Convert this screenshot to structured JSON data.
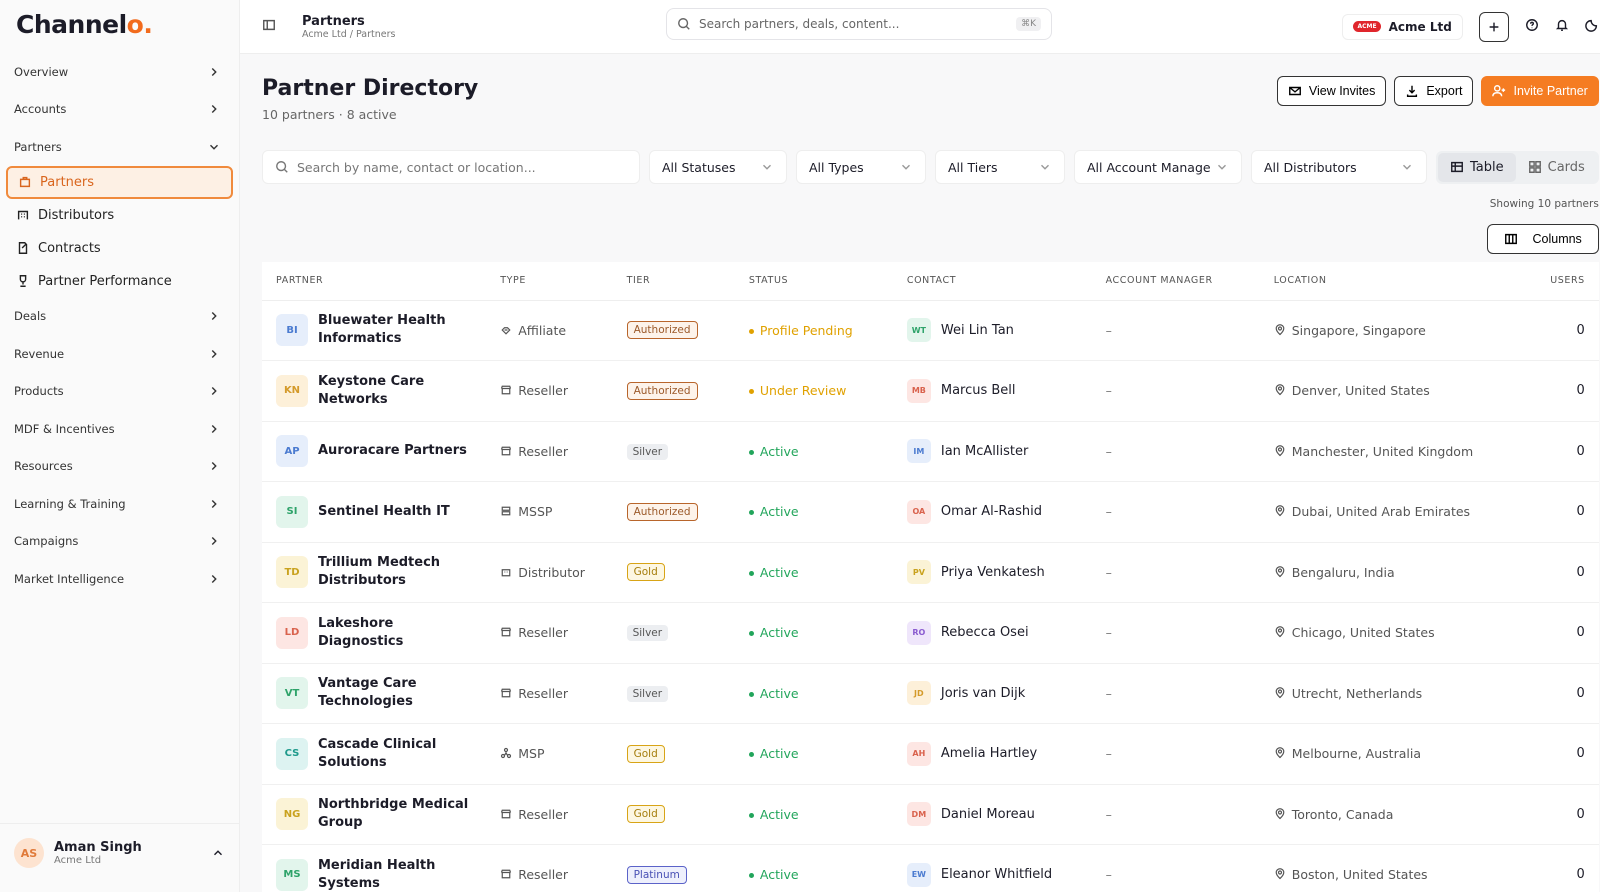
{
  "sidebar": {
    "brand": "Channel",
    "brand_accent": "o.",
    "nav_top": [
      "Overview",
      "Accounts"
    ],
    "group": "Partners",
    "sub_items": [
      "Partners",
      "Distributors",
      "Contracts",
      "Partner Performance"
    ],
    "nav_bottom": [
      "Deals",
      "Revenue",
      "Products",
      "MDF & Incentives",
      "Resources",
      "Learning & Training",
      "Campaigns",
      "Market Intelligence"
    ],
    "user": {
      "initials": "AS",
      "name": "Aman Singh",
      "org": "Acme Ltd"
    }
  },
  "topbar": {
    "title": "Partners",
    "breadcrumb": "Acme Ltd / Partners",
    "search_placeholder": "Search partners, deals, content...",
    "shortcut": "⌘K",
    "org_logo": "ACME",
    "org": "Acme Ltd"
  },
  "header": {
    "title": "Partner Directory",
    "subtitle": "10 partners · 8 active",
    "buttons": [
      "View Invites",
      "Export",
      "Invite Partner"
    ]
  },
  "filters": {
    "search_placeholder": "Search by name, contact or location...",
    "dropdowns": [
      "All Statuses",
      "All Types",
      "All Tiers",
      "All Account Manage",
      "All Distributors"
    ],
    "views": [
      "Table",
      "Cards"
    ]
  },
  "showing": "Showing 10 partners",
  "columns_button": "Columns",
  "table": {
    "columns": [
      "PARTNER",
      "TYPE",
      "TIER",
      "STATUS",
      "CONTACT",
      "ACCOUNT MANAGER",
      "LOCATION",
      "USERS"
    ],
    "rows": [
      {
        "initials": "BI",
        "name": "Bluewater Health Informatics",
        "type": "Affiliate",
        "tier": "Authorized",
        "status": "Profile Pending",
        "contact_initials": "WT",
        "contact": "Wei Lin Tan",
        "manager": "–",
        "location": "Singapore, Singapore",
        "users": 0
      },
      {
        "initials": "KN",
        "name": "Keystone Care Networks",
        "type": "Reseller",
        "tier": "Authorized",
        "status": "Under Review",
        "contact_initials": "MB",
        "contact": "Marcus Bell",
        "manager": "–",
        "location": "Denver, United States",
        "users": 0
      },
      {
        "initials": "AP",
        "name": "Auroracare Partners",
        "type": "Reseller",
        "tier": "Silver",
        "status": "Active",
        "contact_initials": "IM",
        "contact": "Ian McAllister",
        "manager": "–",
        "location": "Manchester, United Kingdom",
        "users": 0
      },
      {
        "initials": "SI",
        "name": "Sentinel Health IT",
        "type": "MSSP",
        "tier": "Authorized",
        "status": "Active",
        "contact_initials": "OA",
        "contact": "Omar Al-Rashid",
        "manager": "–",
        "location": "Dubai, United Arab Emirates",
        "users": 0
      },
      {
        "initials": "TD",
        "name": "Trillium Medtech Distributors",
        "type": "Distributor",
        "tier": "Gold",
        "status": "Active",
        "contact_initials": "PV",
        "contact": "Priya Venkatesh",
        "manager": "–",
        "location": "Bengaluru, India",
        "users": 0
      },
      {
        "initials": "LD",
        "name": "Lakeshore Diagnostics",
        "type": "Reseller",
        "tier": "Silver",
        "status": "Active",
        "contact_initials": "RO",
        "contact": "Rebecca Osei",
        "manager": "–",
        "location": "Chicago, United States",
        "users": 0
      },
      {
        "initials": "VT",
        "name": "Vantage Care Technologies",
        "type": "Reseller",
        "tier": "Silver",
        "status": "Active",
        "contact_initials": "JD",
        "contact": "Joris van Dijk",
        "manager": "–",
        "location": "Utrecht, Netherlands",
        "users": 0
      },
      {
        "initials": "CS",
        "name": "Cascade Clinical Solutions",
        "type": "MSP",
        "tier": "Gold",
        "status": "Active",
        "contact_initials": "AH",
        "contact": "Amelia Hartley",
        "manager": "–",
        "location": "Melbourne, Australia",
        "users": 0
      },
      {
        "initials": "NG",
        "name": "Northbridge Medical Group",
        "type": "Reseller",
        "tier": "Gold",
        "status": "Active",
        "contact_initials": "DM",
        "contact": "Daniel Moreau",
        "manager": "–",
        "location": "Toronto, Canada",
        "users": 0
      },
      {
        "initials": "MS",
        "name": "Meridian Health Systems",
        "type": "Reseller",
        "tier": "Platinum",
        "status": "Active",
        "contact_initials": "EW",
        "contact": "Eleanor Whitfield",
        "manager": "–",
        "location": "Boston, United States",
        "users": 0
      }
    ]
  }
}
